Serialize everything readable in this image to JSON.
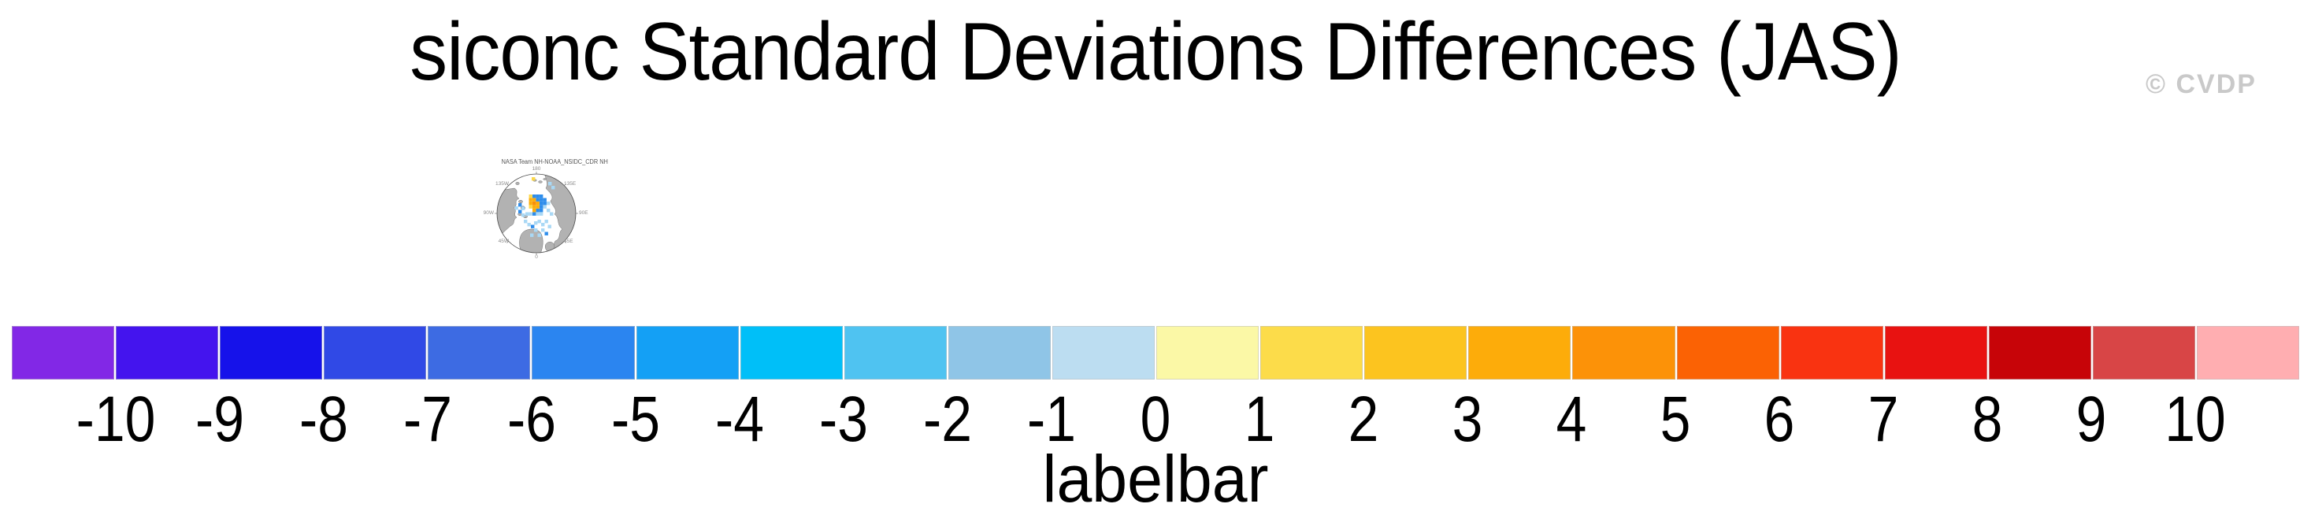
{
  "page": {
    "title": "siconc Standard Deviations Differences (JAS)",
    "watermark": "© CVDP"
  },
  "inset_map": {
    "title": "NASA Team NH-NOAA_NSIDC_CDR NH",
    "ring_labels": [
      "180",
      "135E",
      "90E",
      "45E",
      "0",
      "45W",
      "90W",
      "135W"
    ],
    "cell_colors": {
      "blue": "#2E8DEB",
      "pale": "#A9D8F5",
      "orange": "#FDAC0A",
      "amber": "#F8900B",
      "yellow": "#FCD84B"
    },
    "cells": [
      [
        74,
        27,
        "yellow"
      ],
      [
        95,
        33,
        "pale"
      ],
      [
        99,
        38,
        "pale"
      ],
      [
        70.5,
        49,
        "yellow"
      ],
      [
        75,
        49,
        "blue"
      ],
      [
        79.5,
        49,
        "blue"
      ],
      [
        84,
        49,
        "blue"
      ],
      [
        70.5,
        53.5,
        "orange"
      ],
      [
        75,
        53.5,
        "orange"
      ],
      [
        79.5,
        53.5,
        "blue"
      ],
      [
        84,
        53.5,
        "blue"
      ],
      [
        88.5,
        53.5,
        "blue"
      ],
      [
        70.5,
        58,
        "orange"
      ],
      [
        75,
        58,
        "amber"
      ],
      [
        79.5,
        58,
        "orange"
      ],
      [
        84,
        58,
        "blue"
      ],
      [
        88.5,
        58,
        "blue"
      ],
      [
        93,
        58,
        "pale"
      ],
      [
        70.5,
        62.5,
        "yellow"
      ],
      [
        75,
        62.5,
        "orange"
      ],
      [
        79.5,
        62.5,
        "orange"
      ],
      [
        84,
        62.5,
        "blue"
      ],
      [
        88.5,
        62.5,
        "pale"
      ],
      [
        75,
        67,
        "orange"
      ],
      [
        79.5,
        67,
        "blue"
      ],
      [
        84,
        67,
        "blue"
      ],
      [
        93,
        67,
        "pale"
      ],
      [
        66,
        71.5,
        "pale"
      ],
      [
        70.5,
        71.5,
        "pale"
      ],
      [
        75,
        71.5,
        "blue"
      ],
      [
        79.5,
        71.5,
        "pale"
      ],
      [
        84,
        71.5,
        "pale"
      ],
      [
        57,
        60,
        "blue"
      ],
      [
        52.5,
        64,
        "pale"
      ],
      [
        61,
        64.5,
        "pale"
      ],
      [
        57,
        68.5,
        "blue"
      ],
      [
        61,
        73,
        "pale"
      ],
      [
        64,
        81,
        "pale"
      ],
      [
        68.5,
        85,
        "pale"
      ],
      [
        77,
        83,
        "pale"
      ],
      [
        81.5,
        81,
        "pale"
      ],
      [
        86,
        85,
        "pale"
      ],
      [
        90.5,
        81,
        "pale"
      ],
      [
        73,
        87.5,
        "blue"
      ],
      [
        77,
        92,
        "pale"
      ],
      [
        86,
        92,
        "pale"
      ],
      [
        94.5,
        87.5,
        "pale"
      ],
      [
        90.5,
        96.5,
        "blue"
      ],
      [
        81.5,
        98.5,
        "pale"
      ],
      [
        72,
        98.5,
        "pale"
      ],
      [
        97,
        71.5,
        "pale"
      ]
    ]
  },
  "chart_data": {
    "type": "colorbar",
    "title": "siconc Standard Deviations Differences (JAS)",
    "xlabel": "labelbar",
    "tick_labels": [
      "-10",
      "-9",
      "-8",
      "-7",
      "-6",
      "-5",
      "-4",
      "-3",
      "-2",
      "-1",
      "0",
      "1",
      "2",
      "3",
      "4",
      "5",
      "6",
      "7",
      "8",
      "9",
      "10"
    ],
    "tick_values": [
      -10,
      -9,
      -8,
      -7,
      -6,
      -5,
      -4,
      -3,
      -2,
      -1,
      0,
      1,
      2,
      3,
      4,
      5,
      6,
      7,
      8,
      9,
      10
    ],
    "segment_colors": [
      "#8228E6",
      "#4414EE",
      "#1612EA",
      "#3049E6",
      "#3D6BE3",
      "#2B85F0",
      "#14A0F5",
      "#00BFF8",
      "#4FC3F1",
      "#8FC5E7",
      "#BCDDF1",
      "#FBF8A6",
      "#FCDC4A",
      "#FCC41F",
      "#FDAC0A",
      "#FC9208",
      "#FB6204",
      "#F93311",
      "#E81211",
      "#C70408",
      "#D84546",
      "#FFAEB1"
    ],
    "legend_position": "bottom",
    "grid": false
  }
}
